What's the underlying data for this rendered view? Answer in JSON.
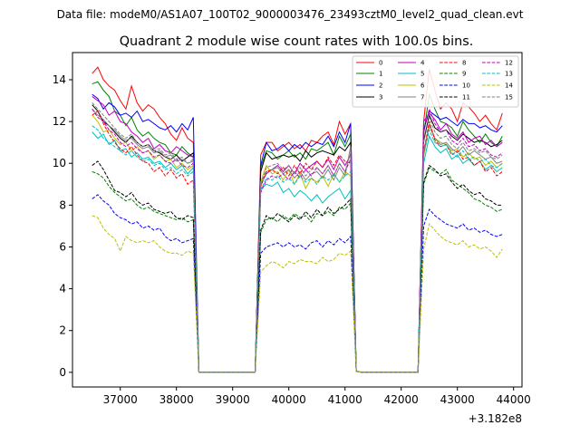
{
  "chart_data": {
    "type": "line",
    "suptitle": "Data file: modeM0/AS1A07_100T02_9000003476_23493cztM0_level2_quad_clean.evt",
    "title": "Quadrant 2 module wise count rates with 100.0s bins.",
    "xlabel": "",
    "ylabel": "",
    "x_offset_label": "+3.182e8",
    "x_ticks": [
      37000,
      38000,
      39000,
      40000,
      41000,
      42000,
      43000,
      44000
    ],
    "x_tick_labels": [
      "37000",
      "38000",
      "39000",
      "40000",
      "41000",
      "42000",
      "43000",
      "44000"
    ],
    "y_ticks": [
      0,
      2,
      4,
      6,
      8,
      10,
      12,
      14
    ],
    "y_tick_labels": [
      "0",
      "2",
      "4",
      "6",
      "8",
      "10",
      "12",
      "14"
    ],
    "xlim": [
      36150,
      44150
    ],
    "ylim": [
      -0.7,
      15.3
    ],
    "legend_position": "top-right",
    "segment_starts": [
      36500,
      39500,
      42400
    ],
    "bin_width": 100,
    "gap_before_segment": [
      38100,
      41200
    ],
    "series": [
      {
        "name": "0",
        "color": "#ff0000",
        "dash": "solid",
        "segments": [
          [
            14.3,
            14.6,
            14.0,
            13.7,
            13.5,
            13.0,
            12.6,
            13.7,
            12.9,
            12.5,
            12.8,
            12.6,
            12.2,
            11.9,
            11.4,
            11.1,
            11.7,
            11.2,
            11.0
          ],
          [
            10.4,
            11.0,
            11.0,
            10.6,
            10.8,
            11.0,
            10.7,
            10.9,
            10.6,
            11.1,
            11.0,
            11.3,
            11.5,
            10.9,
            12.0,
            11.4,
            11.9
          ],
          [
            12.0,
            14.5,
            13.5,
            12.6,
            12.9,
            12.6,
            12.0,
            12.9,
            12.7,
            12.4,
            12.0,
            12.3,
            11.9,
            11.6,
            12.4
          ]
        ]
      },
      {
        "name": "1",
        "color": "#008000",
        "dash": "solid",
        "segments": [
          [
            13.8,
            13.9,
            13.5,
            13.2,
            12.5,
            12.3,
            11.8,
            12.2,
            11.6,
            11.3,
            11.5,
            11.2,
            11.0,
            10.9,
            10.5,
            10.4,
            10.8,
            10.5,
            10.3
          ],
          [
            9.8,
            10.6,
            10.5,
            10.2,
            10.4,
            10.6,
            10.3,
            10.5,
            10.2,
            10.7,
            10.6,
            10.8,
            11.0,
            10.4,
            11.3,
            10.8,
            11.4
          ],
          [
            11.4,
            13.3,
            12.6,
            12.0,
            11.9,
            11.7,
            11.3,
            12.0,
            11.6,
            11.3,
            11.0,
            11.4,
            11.0,
            10.8,
            11.3
          ]
        ]
      },
      {
        "name": "2",
        "color": "#0000ff",
        "dash": "solid",
        "segments": [
          [
            13.3,
            13.1,
            12.6,
            12.9,
            12.7,
            12.3,
            12.4,
            12.2,
            12.5,
            12.0,
            12.1,
            11.9,
            11.7,
            11.6,
            11.8,
            11.5,
            11.9,
            11.6,
            12.2
          ],
          [
            9.9,
            11.0,
            10.6,
            10.7,
            10.9,
            10.6,
            10.9,
            10.7,
            11.0,
            10.8,
            11.0,
            10.9,
            11.3,
            10.8,
            11.5,
            11.0,
            11.9
          ],
          [
            11.6,
            12.5,
            12.3,
            12.1,
            12.2,
            12.0,
            11.8,
            12.1,
            11.9,
            11.9,
            11.7,
            11.8,
            11.6,
            11.5,
            11.8
          ]
        ]
      },
      {
        "name": "3",
        "color": "#000000",
        "dash": "solid",
        "segments": [
          [
            12.8,
            12.5,
            12.0,
            11.8,
            11.5,
            11.2,
            11.0,
            11.3,
            11.0,
            10.8,
            10.9,
            10.6,
            10.5,
            10.3,
            10.2,
            10.4,
            10.1,
            10.3,
            10.5
          ],
          [
            9.6,
            10.5,
            10.2,
            10.3,
            10.4,
            10.3,
            10.4,
            10.1,
            10.6,
            10.3,
            10.5,
            10.6,
            10.5,
            10.4,
            10.8,
            10.6,
            11.0
          ],
          [
            11.1,
            12.3,
            11.7,
            11.5,
            11.6,
            11.3,
            11.1,
            11.4,
            11.2,
            11.0,
            11.1,
            11.0,
            10.8,
            10.9,
            11.1
          ]
        ]
      },
      {
        "name": "4",
        "color": "#bf00bf",
        "dash": "solid",
        "segments": [
          [
            13.2,
            13.0,
            12.8,
            12.3,
            12.5,
            12.0,
            11.9,
            11.5,
            11.3,
            11.0,
            11.2,
            10.7,
            10.9,
            10.6,
            10.5,
            10.8,
            10.6,
            10.4,
            10.3
          ],
          [
            9.0,
            9.5,
            9.7,
            9.9,
            9.6,
            9.9,
            9.5,
            10.0,
            9.7,
            9.9,
            10.1,
            9.8,
            10.2,
            9.7,
            10.3,
            9.9,
            10.4
          ],
          [
            12.0,
            12.4,
            12.1,
            11.6,
            11.9,
            11.4,
            11.2,
            11.5,
            11.0,
            11.2,
            11.3,
            10.9,
            11.1,
            10.8,
            11.0
          ]
        ]
      },
      {
        "name": "5",
        "color": "#00bfbf",
        "dash": "solid",
        "segments": [
          [
            11.5,
            11.2,
            11.4,
            10.9,
            11.1,
            10.6,
            10.7,
            10.3,
            10.5,
            10.2,
            10.3,
            10.0,
            10.1,
            9.8,
            10.0,
            9.7,
            9.9,
            9.5,
            9.8
          ],
          [
            8.8,
            9.0,
            8.9,
            9.1,
            8.6,
            8.8,
            8.4,
            8.7,
            8.5,
            8.2,
            8.5,
            8.1,
            8.4,
            8.6,
            8.8,
            8.3,
            8.7
          ],
          [
            10.0,
            11.3,
            10.8,
            10.5,
            10.7,
            10.2,
            10.4,
            10.0,
            10.2,
            9.9,
            10.1,
            9.7,
            9.9,
            9.6,
            9.8
          ]
        ]
      },
      {
        "name": "6",
        "color": "#bfbf00",
        "dash": "solid",
        "segments": [
          [
            12.3,
            12.0,
            11.5,
            11.6,
            11.2,
            10.9,
            11.0,
            10.6,
            10.8,
            10.5,
            10.6,
            10.2,
            10.4,
            10.1,
            10.2,
            9.8,
            10.0,
            9.7,
            9.9
          ],
          [
            9.1,
            9.9,
            9.5,
            9.6,
            9.2,
            9.7,
            9.0,
            9.5,
            8.8,
            9.3,
            9.1,
            9.4,
            8.9,
            9.5,
            9.1,
            9.6,
            9.4
          ],
          [
            10.3,
            11.9,
            11.2,
            11.0,
            10.9,
            10.6,
            10.7,
            10.3,
            10.5,
            10.2,
            10.3,
            9.9,
            10.1,
            9.8,
            10.0
          ]
        ]
      },
      {
        "name": "7",
        "color": "#808080",
        "dash": "solid",
        "segments": [
          [
            12.6,
            12.3,
            12.1,
            11.8,
            11.6,
            11.3,
            11.1,
            11.2,
            10.9,
            10.7,
            10.8,
            10.5,
            10.6,
            10.3,
            10.4,
            10.1,
            10.2,
            10.0,
            10.1
          ],
          [
            8.9,
            9.6,
            9.7,
            9.8,
            9.5,
            9.7,
            9.3,
            9.6,
            9.2,
            9.5,
            9.6,
            9.3,
            9.7,
            9.2,
            9.8,
            9.4,
            10.8
          ],
          [
            10.6,
            11.8,
            11.2,
            10.9,
            11.0,
            10.7,
            10.5,
            10.8,
            10.4,
            10.6,
            10.4,
            10.2,
            10.3,
            10.0,
            10.1
          ]
        ]
      },
      {
        "name": "8",
        "color": "#ff0000",
        "dash": "dashed",
        "segments": [
          [
            12.3,
            12.5,
            11.9,
            11.4,
            11.0,
            10.7,
            10.5,
            10.8,
            10.4,
            10.1,
            10.0,
            9.6,
            9.8,
            9.4,
            9.7,
            9.3,
            9.5,
            9.0,
            9.2
          ],
          [
            8.9,
            9.6,
            9.7,
            9.5,
            9.8,
            9.4,
            9.9,
            9.5,
            10.0,
            9.7,
            10.1,
            9.8,
            10.3,
            9.9,
            10.4,
            10.1,
            10.0
          ],
          [
            10.5,
            12.0,
            11.1,
            10.8,
            10.9,
            10.4,
            10.6,
            10.2,
            10.3,
            9.9,
            10.1,
            9.6,
            9.8,
            9.4,
            9.6
          ]
        ]
      },
      {
        "name": "9",
        "color": "#008000",
        "dash": "dashed",
        "segments": [
          [
            9.6,
            9.5,
            9.3,
            8.9,
            8.6,
            8.4,
            8.2,
            8.3,
            8.0,
            7.8,
            7.9,
            7.7,
            7.6,
            7.5,
            7.4,
            7.3,
            7.4,
            7.2,
            7.3
          ],
          [
            6.7,
            7.3,
            7.4,
            7.2,
            7.5,
            7.3,
            7.6,
            7.4,
            7.5,
            7.2,
            7.6,
            7.5,
            7.7,
            7.5,
            7.9,
            7.8,
            8.1
          ],
          [
            9.0,
            9.8,
            9.6,
            9.5,
            9.7,
            9.2,
            9.0,
            8.8,
            8.6,
            8.3,
            8.2,
            8.0,
            7.9,
            7.7,
            7.8
          ]
        ]
      },
      {
        "name": "10",
        "color": "#0000ff",
        "dash": "dashed",
        "segments": [
          [
            8.3,
            8.5,
            8.2,
            8.0,
            7.6,
            7.4,
            7.3,
            7.1,
            7.2,
            6.9,
            7.0,
            6.8,
            6.9,
            6.5,
            6.3,
            6.4,
            6.2,
            6.3,
            6.4
          ],
          [
            5.7,
            6.0,
            6.1,
            6.2,
            6.0,
            6.2,
            6.0,
            6.1,
            5.9,
            6.2,
            6.3,
            6.0,
            6.3,
            6.1,
            6.4,
            6.2,
            6.5
          ],
          [
            7.0,
            7.8,
            7.5,
            7.3,
            7.1,
            7.0,
            6.9,
            7.1,
            6.8,
            6.9,
            6.7,
            6.8,
            6.6,
            6.5,
            6.6
          ]
        ]
      },
      {
        "name": "11",
        "color": "#000000",
        "dash": "dashed",
        "segments": [
          [
            9.9,
            10.1,
            9.7,
            9.2,
            8.7,
            8.6,
            8.4,
            8.6,
            8.2,
            8.0,
            8.1,
            7.8,
            7.7,
            7.6,
            7.7,
            7.4,
            7.3,
            7.5,
            7.4
          ],
          [
            6.8,
            7.5,
            7.3,
            7.6,
            7.4,
            7.2,
            7.5,
            7.3,
            7.7,
            7.4,
            7.8,
            7.5,
            7.9,
            7.6,
            7.8,
            8.0,
            8.3
          ],
          [
            9.1,
            9.9,
            9.7,
            9.4,
            9.5,
            9.1,
            8.8,
            9.0,
            8.7,
            8.5,
            8.6,
            8.3,
            8.2,
            8.0,
            8.0
          ]
        ]
      },
      {
        "name": "12",
        "color": "#bf00bf",
        "dash": "dashed",
        "segments": [
          [
            12.6,
            12.2,
            12.0,
            11.6,
            11.4,
            11.0,
            10.8,
            11.0,
            10.7,
            10.5,
            10.6,
            10.3,
            10.4,
            10.1,
            10.0,
            10.2,
            9.9,
            9.8,
            10.0
          ],
          [
            8.6,
            9.2,
            9.4,
            9.3,
            9.5,
            9.2,
            9.6,
            9.3,
            9.7,
            9.4,
            9.8,
            9.5,
            9.9,
            9.4,
            10.0,
            9.6,
            10.2
          ],
          [
            11.5,
            12.6,
            11.9,
            11.5,
            11.6,
            11.1,
            10.9,
            11.2,
            10.8,
            10.9,
            10.6,
            10.7,
            10.4,
            10.3,
            10.5
          ]
        ]
      },
      {
        "name": "13",
        "color": "#00bfbf",
        "dash": "dashed",
        "segments": [
          [
            11.8,
            11.6,
            11.2,
            11.0,
            10.8,
            10.6,
            10.4,
            10.6,
            10.3,
            10.1,
            10.2,
            9.9,
            10.0,
            9.7,
            9.8,
            9.5,
            9.7,
            9.4,
            9.6
          ],
          [
            8.7,
            9.3,
            9.2,
            9.4,
            9.1,
            9.3,
            9.0,
            9.4,
            9.1,
            9.3,
            9.0,
            9.4,
            9.2,
            9.5,
            9.1,
            9.4,
            9.6
          ],
          [
            10.4,
            11.6,
            11.0,
            10.8,
            10.9,
            10.5,
            10.3,
            10.6,
            10.2,
            10.3,
            10.1,
            10.2,
            9.9,
            9.8,
            10.0
          ]
        ]
      },
      {
        "name": "14",
        "color": "#bfbf00",
        "dash": "dashed",
        "segments": [
          [
            7.5,
            7.4,
            6.9,
            6.6,
            6.4,
            5.8,
            6.5,
            6.3,
            6.2,
            6.3,
            6.2,
            6.3,
            6.0,
            5.8,
            5.7,
            5.7,
            5.6,
            5.8,
            5.7
          ],
          [
            4.8,
            5.1,
            5.3,
            5.2,
            5.0,
            5.3,
            5.2,
            5.4,
            5.3,
            5.3,
            5.2,
            5.5,
            5.3,
            5.4,
            5.7,
            5.6,
            5.8
          ],
          [
            5.9,
            7.1,
            6.8,
            6.5,
            6.3,
            6.2,
            6.1,
            6.3,
            6.0,
            6.1,
            5.9,
            6.0,
            5.8,
            5.5,
            5.9
          ]
        ]
      },
      {
        "name": "15",
        "color": "#808080",
        "dash": "dashed",
        "segments": [
          [
            12.9,
            12.6,
            12.3,
            12.0,
            11.7,
            11.4,
            11.2,
            11.4,
            11.0,
            10.8,
            10.9,
            10.6,
            10.7,
            10.4,
            10.5,
            10.2,
            10.3,
            10.0,
            10.2
          ],
          [
            9.0,
            9.8,
            9.9,
            10.0,
            9.7,
            9.9,
            9.5,
            9.8,
            9.4,
            9.7,
            9.8,
            9.5,
            9.9,
            9.4,
            10.0,
            9.6,
            10.5
          ],
          [
            11.0,
            12.2,
            11.5,
            11.2,
            11.3,
            10.9,
            10.7,
            11.0,
            10.6,
            10.7,
            10.5,
            10.6,
            10.3,
            10.2,
            10.4
          ]
        ]
      }
    ]
  }
}
